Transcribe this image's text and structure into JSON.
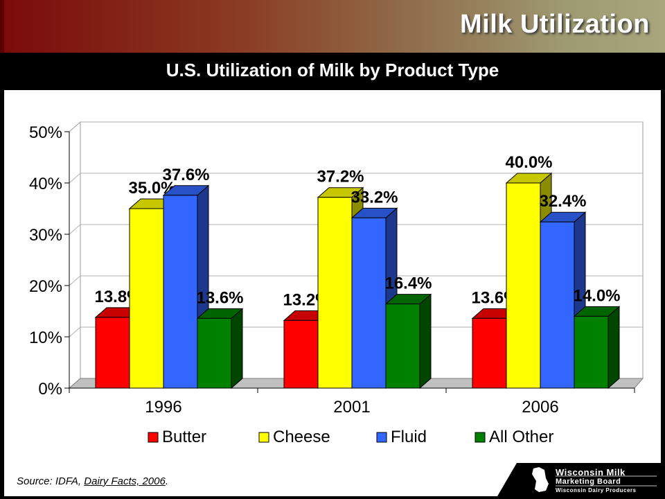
{
  "header": {
    "title": "Milk Utilization",
    "subtitle": "U.S. Utilization of Milk by Product Type"
  },
  "source": {
    "prefix": "Source: IDFA, ",
    "publication": "Dairy Facts, 2006",
    "suffix": "."
  },
  "logo": {
    "line1": "Wisconsin Milk",
    "line2": "Marketing Board",
    "line3": "Wisconsin Dairy Producers"
  },
  "chart_data": {
    "type": "bar",
    "title": "",
    "categories": [
      "1996",
      "2001",
      "2006"
    ],
    "series": [
      {
        "name": "Butter",
        "color": "#ff0000",
        "values": [
          13.8,
          13.2,
          13.6
        ],
        "labels": [
          "13.8%",
          "13.2%",
          "13.6%"
        ]
      },
      {
        "name": "Cheese",
        "color": "#ffff00",
        "values": [
          35.0,
          37.2,
          40.0
        ],
        "labels": [
          "35.0%",
          "37.2%",
          "40.0%"
        ]
      },
      {
        "name": "Fluid",
        "color": "#3366ff",
        "values": [
          37.6,
          33.2,
          32.4
        ],
        "labels": [
          "37.6%",
          "33.2%",
          "32.4%"
        ]
      },
      {
        "name": "All Other",
        "color": "#008000",
        "values": [
          13.6,
          16.4,
          14.0
        ],
        "labels": [
          "13.6%",
          "16.4%",
          "14.0%"
        ]
      }
    ],
    "ylim": [
      0,
      50
    ],
    "yticks": [
      "0%",
      "10%",
      "20%",
      "30%",
      "40%",
      "50%"
    ],
    "grid": true,
    "legend": "bottom",
    "view": "3d"
  }
}
